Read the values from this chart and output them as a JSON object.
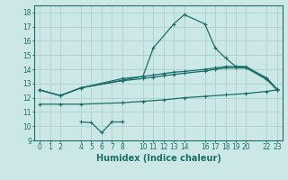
{
  "xlabel": "Humidex (Indice chaleur)",
  "bg_color": "#cce8e6",
  "grid_color": "#b0d4d0",
  "line_color": "#1a6e6a",
  "series": [
    {
      "name": "peak_line",
      "x": [
        0,
        2,
        4,
        10,
        11,
        13,
        14,
        16,
        17,
        18,
        19,
        20,
        22,
        23
      ],
      "y": [
        12.55,
        12.15,
        12.7,
        13.5,
        15.5,
        17.2,
        17.85,
        17.2,
        15.5,
        14.8,
        14.2,
        14.15,
        13.4,
        12.6
      ]
    },
    {
      "name": "flat_upper",
      "x": [
        0,
        2,
        4,
        8,
        10,
        11,
        12,
        13,
        14,
        16,
        17,
        18,
        19,
        20,
        22,
        23
      ],
      "y": [
        12.55,
        12.15,
        12.7,
        13.35,
        13.5,
        13.6,
        13.7,
        13.8,
        13.85,
        14.0,
        14.1,
        14.2,
        14.2,
        14.2,
        13.35,
        12.6
      ]
    },
    {
      "name": "flat_lower",
      "x": [
        0,
        2,
        4,
        8,
        10,
        11,
        12,
        13,
        14,
        16,
        17,
        18,
        19,
        20,
        22,
        23
      ],
      "y": [
        12.55,
        12.15,
        12.7,
        13.2,
        13.35,
        13.45,
        13.55,
        13.65,
        13.72,
        13.88,
        14.0,
        14.1,
        14.1,
        14.1,
        13.28,
        12.55
      ]
    },
    {
      "name": "dip_line",
      "x": [
        4,
        5,
        6,
        7,
        8
      ],
      "y": [
        10.3,
        10.25,
        9.55,
        10.3,
        10.3
      ]
    },
    {
      "name": "bottom_rise",
      "x": [
        0,
        2,
        4,
        8,
        10,
        12,
        14,
        16,
        18,
        20,
        22,
        23
      ],
      "y": [
        11.55,
        11.55,
        11.55,
        11.65,
        11.75,
        11.85,
        12.0,
        12.1,
        12.2,
        12.3,
        12.45,
        12.55
      ]
    }
  ],
  "xlim": [
    -0.5,
    23.5
  ],
  "ylim": [
    9,
    18.5
  ],
  "xticks": [
    0,
    1,
    2,
    4,
    5,
    6,
    7,
    8,
    10,
    11,
    12,
    13,
    14,
    16,
    17,
    18,
    19,
    20,
    22,
    23
  ],
  "yticks": [
    9,
    10,
    11,
    12,
    13,
    14,
    15,
    16,
    17,
    18
  ],
  "tick_fontsize": 5.5,
  "xlabel_fontsize": 7.0
}
